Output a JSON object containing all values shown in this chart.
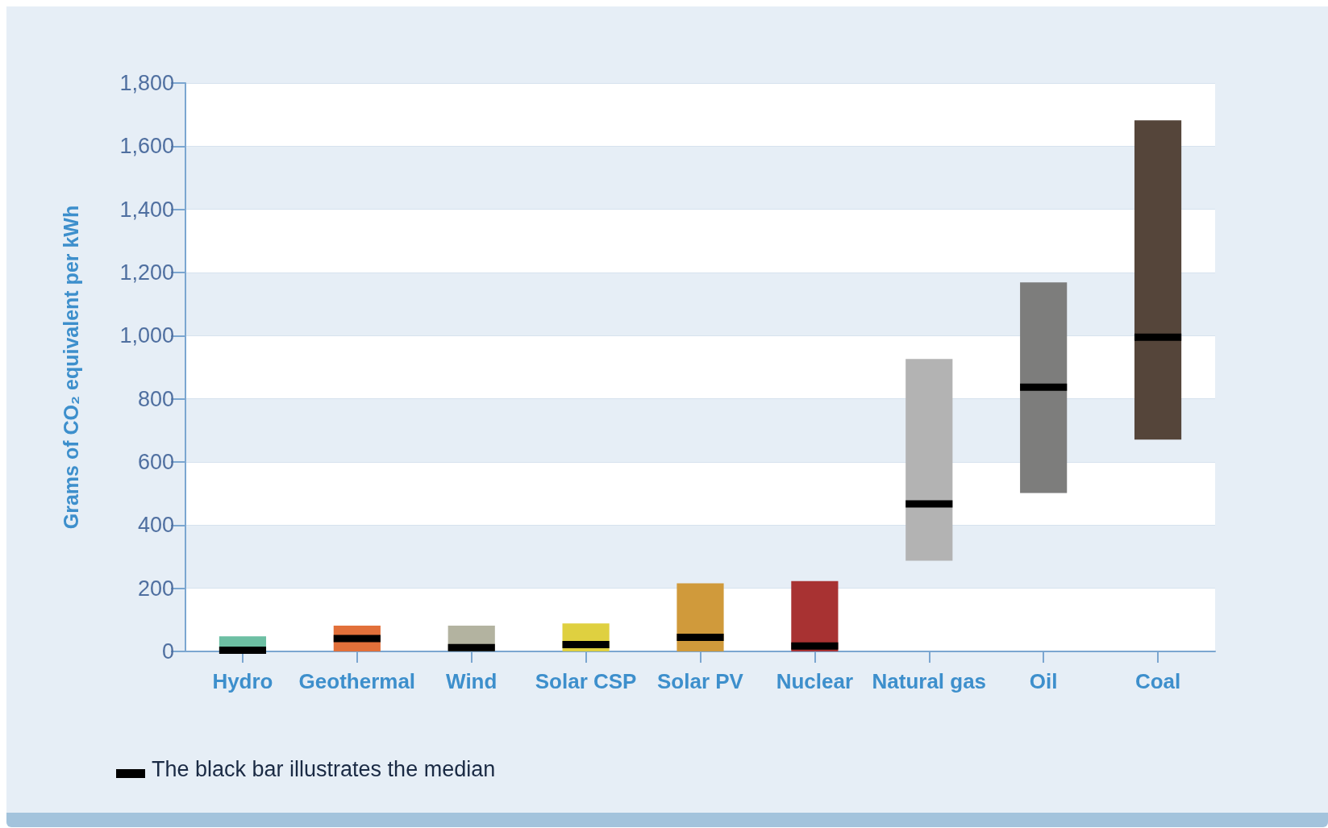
{
  "chart_data": {
    "type": "box",
    "ylabel": "Grams of CO₂ equivalent per kWh",
    "annotations": [
      "The black bar illustrates the median"
    ],
    "categories": [
      "Hydro",
      "Geothermal",
      "Wind",
      "Solar CSP",
      "Solar PV",
      "Nuclear",
      "Natural gas",
      "Oil",
      "Coal"
    ],
    "colors": [
      "#6dbfa3",
      "#e2703a",
      "#b3b3a0",
      "#dfd040",
      "#d09a3b",
      "#a83232",
      "#b3b3b3",
      "#7d7d7c",
      "#55453a"
    ],
    "boxes": [
      {
        "low": 0,
        "q1": 0,
        "median": 4,
        "q3": 48,
        "high": 48
      },
      {
        "low": 0,
        "q1": 0,
        "median": 41,
        "q3": 82,
        "high": 82
      },
      {
        "low": 0,
        "q1": 0,
        "median": 12,
        "q3": 82,
        "high": 82
      },
      {
        "low": 0,
        "q1": 0,
        "median": 22,
        "q3": 89,
        "high": 89
      },
      {
        "low": 0,
        "q1": 0,
        "median": 45,
        "q3": 216,
        "high": 216
      },
      {
        "low": 0,
        "q1": 0,
        "median": 17,
        "q3": 223,
        "high": 223
      },
      {
        "low": 287,
        "q1": 287,
        "median": 467,
        "q3": 926,
        "high": 926
      },
      {
        "low": 502,
        "q1": 502,
        "median": 837,
        "q3": 1169,
        "high": 1169
      },
      {
        "low": 671,
        "q1": 671,
        "median": 995,
        "q3": 1682,
        "high": 1682
      }
    ],
    "ylim": [
      0,
      1800
    ],
    "yticks": [
      {
        "value": 0,
        "label": "0"
      },
      {
        "value": 200,
        "label": "200"
      },
      {
        "value": 400,
        "label": "400"
      },
      {
        "value": 600,
        "label": "600"
      },
      {
        "value": 800,
        "label": "800"
      },
      {
        "value": 1000,
        "label": "1,000"
      },
      {
        "value": 1200,
        "label": "1,200"
      },
      {
        "value": 1400,
        "label": "1,400"
      },
      {
        "value": 1600,
        "label": "1,600"
      },
      {
        "value": 1800,
        "label": "1,800"
      }
    ],
    "grid": "y"
  }
}
